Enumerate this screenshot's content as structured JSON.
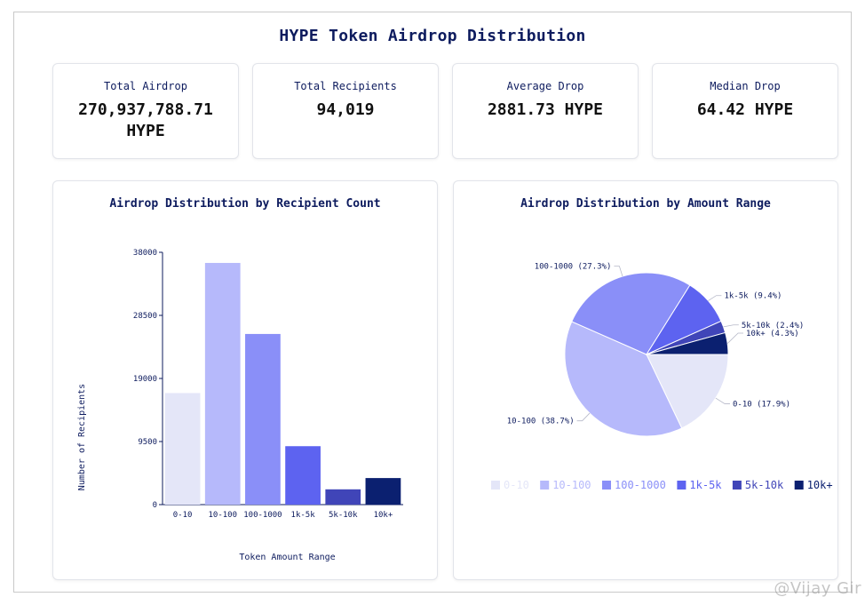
{
  "title": "HYPE Token Airdrop Distribution",
  "stats": [
    {
      "label": "Total Airdrop",
      "value": "270,937,788.71 HYPE"
    },
    {
      "label": "Total Recipients",
      "value": "94,019"
    },
    {
      "label": "Average Drop",
      "value": "2881.73 HYPE"
    },
    {
      "label": "Median Drop",
      "value": "64.42 HYPE"
    }
  ],
  "watermark": "@Vijay Gir",
  "chart_data": [
    {
      "type": "bar",
      "title": "Airdrop Distribution by Recipient Count",
      "xlabel": "Token Amount Range",
      "ylabel": "Number of Recipients",
      "categories": [
        "0-10",
        "10-100",
        "100-1000",
        "1k-5k",
        "5k-10k",
        "10k+"
      ],
      "values": [
        16800,
        36400,
        25700,
        8800,
        2300,
        4000
      ],
      "colors": [
        "#e4e6f8",
        "#b6b9fb",
        "#8a8ff8",
        "#5d63f0",
        "#4045b8",
        "#0b2070"
      ],
      "ylim": [
        0,
        38000
      ],
      "yticks": [
        0,
        9500,
        19000,
        28500,
        38000
      ],
      "grid": false,
      "legend": "none"
    },
    {
      "type": "pie",
      "title": "Airdrop Distribution by Amount Range",
      "categories": [
        "0-10",
        "10-100",
        "100-1000",
        "1k-5k",
        "5k-10k",
        "10k+"
      ],
      "values": [
        17.9,
        38.7,
        27.3,
        9.4,
        2.4,
        4.3
      ],
      "labels": [
        "0-10 (17.9%)",
        "10-100 (38.7%)",
        "100-1000 (27.3%)",
        "1k-5k (9.4%)",
        "5k-10k (2.4%)",
        "10k+ (4.3%)"
      ],
      "colors": [
        "#e4e6f8",
        "#b6b9fb",
        "#8a8ff8",
        "#5d63f0",
        "#4045b8",
        "#0b2070"
      ],
      "legend": "bottom"
    }
  ]
}
